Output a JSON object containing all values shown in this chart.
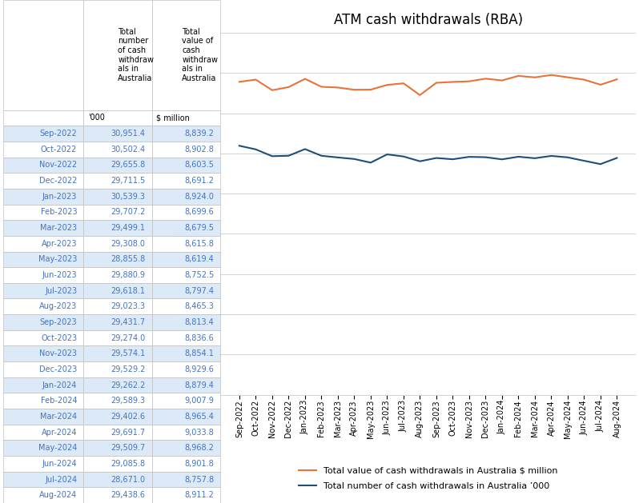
{
  "title": "ATM cash withdrawals (RBA)",
  "months": [
    "Sep-2022",
    "Oct-2022",
    "Nov-2022",
    "Dec-2022",
    "Jan-2023",
    "Feb-2023",
    "Mar-2023",
    "Apr-2023",
    "May-2023",
    "Jun-2023",
    "Jul-2023",
    "Aug-2023",
    "Sep-2023",
    "Oct-2023",
    "Nov-2023",
    "Dec-2023",
    "Jan-2024",
    "Feb-2024",
    "Mar-2024",
    "Apr-2024",
    "May-2024",
    "Jun-2024",
    "Jul-2024",
    "Aug-2024"
  ],
  "number_000": [
    30951.4,
    30502.4,
    29655.8,
    29711.5,
    30539.3,
    29707.2,
    29499.1,
    29308.0,
    28855.8,
    29880.9,
    29618.1,
    29023.3,
    29431.7,
    29274.0,
    29574.1,
    29529.2,
    29262.2,
    29589.3,
    29402.6,
    29691.7,
    29509.7,
    29085.8,
    28671.0,
    29438.6
  ],
  "value_million": [
    8839.2,
    8902.8,
    8603.5,
    8691.2,
    8924.0,
    8699.6,
    8679.5,
    8615.8,
    8619.4,
    8752.5,
    8797.4,
    8465.3,
    8813.4,
    8836.6,
    8854.1,
    8929.6,
    8879.4,
    9007.9,
    8965.4,
    9033.8,
    8968.2,
    8901.8,
    8757.8,
    8911.2
  ],
  "value_scale": 4.4,
  "line_color_value": "#E8723A",
  "line_color_number": "#1F4E79",
  "legend_value": "Total value of cash withdrawals in Australia $ million",
  "legend_number": "Total number of cash withdrawals in Australia ’000",
  "ylim_min": 0.0,
  "ylim_max": 45000.0,
  "yticks": [
    0.0,
    5000.0,
    10000.0,
    15000.0,
    20000.0,
    25000.0,
    30000.0,
    35000.0,
    40000.0,
    45000.0
  ],
  "fig_width": 7.98,
  "fig_height": 6.29,
  "background_color": "#FFFFFF",
  "grid_color": "#D3D3D3",
  "table_month_color": "#4472C4",
  "table_data_color": "#4472C4",
  "table_header_color": "#000000",
  "table_border_color": "#C0C0C0",
  "header_bg": "#FFFFFF",
  "row_bg_alt": "#DCE9F7",
  "row_bg_normal": "#FFFFFF"
}
